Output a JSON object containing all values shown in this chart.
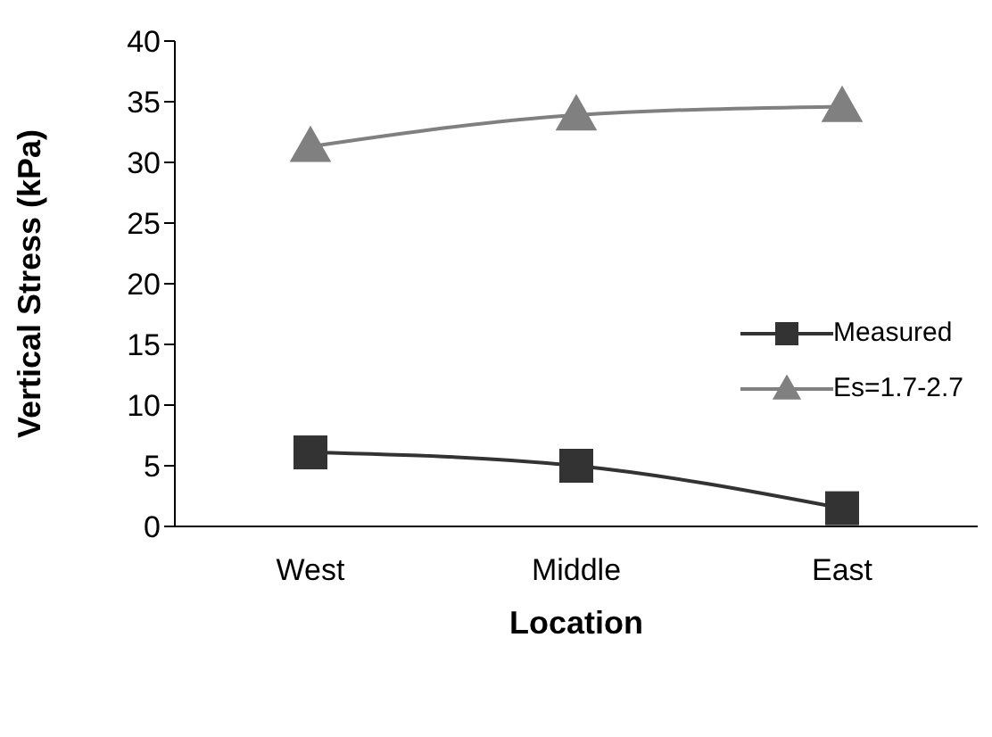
{
  "chart_data": {
    "type": "line",
    "xlabel": "Location",
    "ylabel": "Vertical Stress (kPa)",
    "categories": [
      "West",
      "Middle",
      "East"
    ],
    "ylim": [
      0,
      40
    ],
    "yticks": [
      0,
      5,
      10,
      15,
      20,
      25,
      30,
      35,
      40
    ],
    "legend": "right",
    "series": [
      {
        "name": "Measured",
        "color": "#333333",
        "marker": "square",
        "values": [
          6.1,
          5.0,
          1.5
        ]
      },
      {
        "name": "Es=1.7-2.7",
        "color": "#808080",
        "marker": "triangle",
        "values": [
          31.3,
          33.9,
          34.6
        ]
      }
    ]
  }
}
